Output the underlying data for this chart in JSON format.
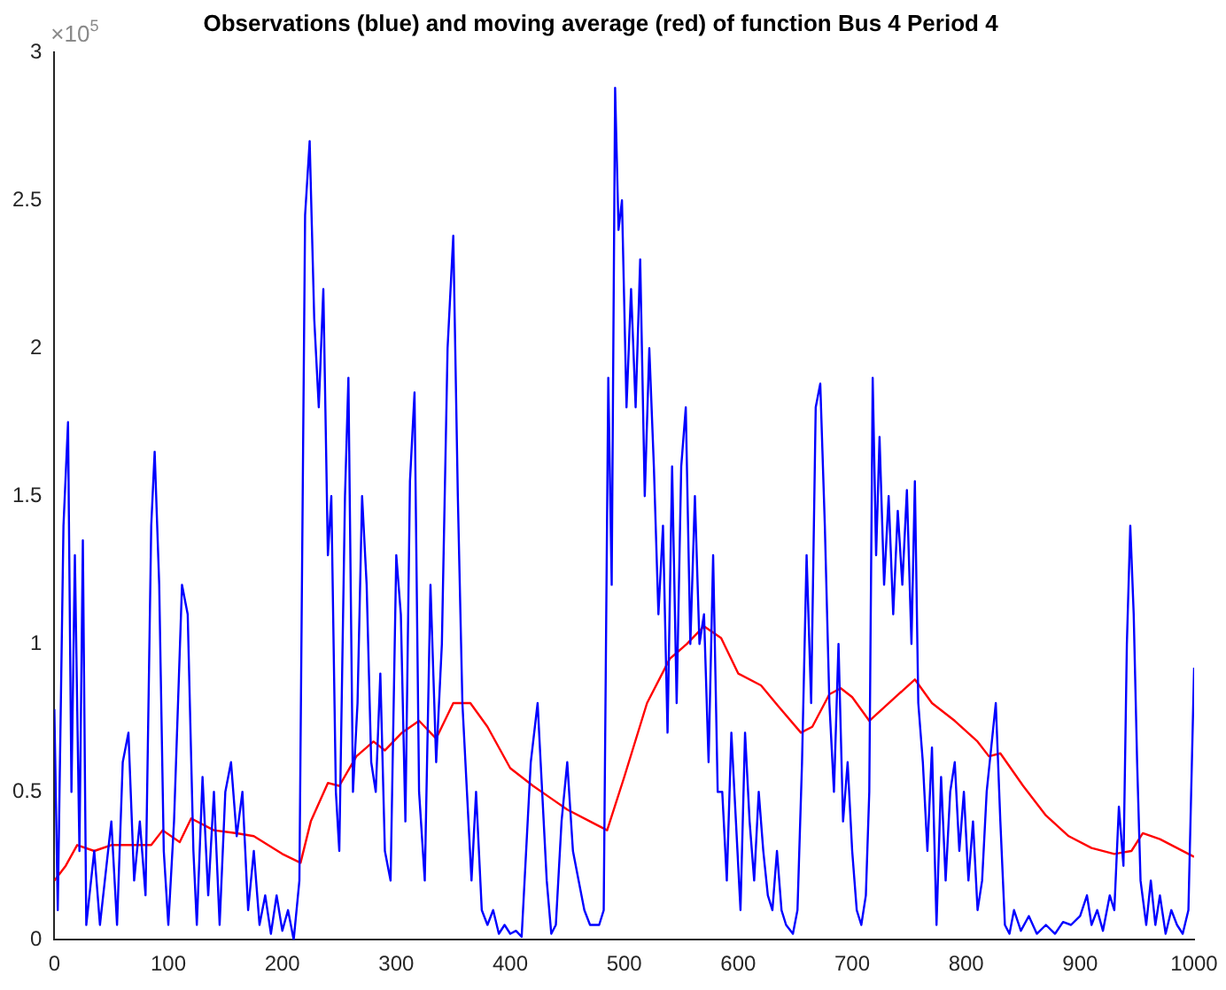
{
  "chart_data": {
    "type": "line",
    "title": "Observations (blue) and moving average (red) of function Bus 4 Period 4",
    "annotations": [
      "×10$^{5}$"
    ],
    "xlim": [
      0,
      1000
    ],
    "xticks": [
      0,
      100,
      200,
      300,
      400,
      500,
      600,
      700,
      800,
      900,
      1000
    ],
    "ylim": [
      0,
      3
    ],
    "yticks": [
      0,
      0.5,
      1,
      1.5,
      2,
      2.5,
      3
    ],
    "grid": false,
    "legend": false,
    "marker": "none",
    "line_style": "solid",
    "series": [
      {
        "color": "#0000ff",
        "x": [
          0,
          3,
          8,
          12,
          15,
          18,
          22,
          25,
          28,
          35,
          40,
          50,
          55,
          60,
          65,
          70,
          75,
          80,
          85,
          88,
          92,
          96,
          100,
          105,
          112,
          117,
          122,
          125,
          130,
          135,
          140,
          145,
          150,
          155,
          160,
          165,
          170,
          175,
          180,
          185,
          190,
          195,
          200,
          205,
          210,
          215,
          220,
          224,
          228,
          232,
          236,
          240,
          243,
          247,
          250,
          255,
          258,
          262,
          266,
          270,
          274,
          278,
          282,
          286,
          290,
          295,
          300,
          304,
          308,
          312,
          316,
          320,
          325,
          330,
          335,
          340,
          345,
          350,
          354,
          358,
          362,
          366,
          370,
          375,
          380,
          385,
          390,
          395,
          400,
          405,
          410,
          418,
          424,
          428,
          432,
          436,
          440,
          445,
          450,
          455,
          460,
          465,
          470,
          478,
          482,
          486,
          489,
          492,
          495,
          498,
          502,
          506,
          510,
          514,
          518,
          522,
          526,
          530,
          534,
          538,
          542,
          546,
          550,
          554,
          558,
          562,
          566,
          570,
          574,
          578,
          582,
          586,
          590,
          594,
          598,
          602,
          606,
          610,
          614,
          618,
          622,
          626,
          630,
          634,
          638,
          642,
          648,
          652,
          656,
          660,
          664,
          668,
          672,
          676,
          680,
          684,
          688,
          692,
          696,
          700,
          704,
          708,
          712,
          715,
          718,
          721,
          724,
          728,
          732,
          736,
          740,
          744,
          748,
          752,
          755,
          758,
          762,
          766,
          770,
          774,
          778,
          782,
          786,
          790,
          794,
          798,
          802,
          806,
          810,
          814,
          818,
          822,
          826,
          830,
          834,
          838,
          842,
          848,
          855,
          862,
          870,
          878,
          885,
          892,
          900,
          906,
          910,
          915,
          920,
          926,
          930,
          934,
          938,
          941,
          944,
          947,
          950,
          953,
          958,
          962,
          966,
          970,
          975,
          980,
          985,
          990,
          995,
          1000
        ],
        "values": [
          0.78,
          0.1,
          1.4,
          1.75,
          0.5,
          1.3,
          0.3,
          1.35,
          0.05,
          0.3,
          0.05,
          0.4,
          0.05,
          0.6,
          0.7,
          0.2,
          0.4,
          0.15,
          1.4,
          1.65,
          1.2,
          0.3,
          0.05,
          0.4,
          1.2,
          1.1,
          0.3,
          0.05,
          0.55,
          0.15,
          0.5,
          0.05,
          0.5,
          0.6,
          0.35,
          0.5,
          0.1,
          0.3,
          0.05,
          0.15,
          0.02,
          0.15,
          0.03,
          0.1,
          0,
          0.2,
          2.45,
          2.7,
          2.1,
          1.8,
          2.2,
          1.3,
          1.5,
          0.5,
          0.3,
          1.5,
          1.9,
          0.5,
          0.8,
          1.5,
          1.2,
          0.6,
          0.5,
          0.9,
          0.3,
          0.2,
          1.3,
          1.1,
          0.4,
          1.55,
          1.85,
          0.5,
          0.2,
          1.2,
          0.6,
          1,
          2,
          2.38,
          1.5,
          0.8,
          0.5,
          0.2,
          0.5,
          0.1,
          0.05,
          0.1,
          0.02,
          0.05,
          0.02,
          0.03,
          0.01,
          0.6,
          0.8,
          0.5,
          0.2,
          0.02,
          0.05,
          0.4,
          0.6,
          0.3,
          0.2,
          0.1,
          0.05,
          0.05,
          0.1,
          1.9,
          1.2,
          2.88,
          2.4,
          2.5,
          1.8,
          2.2,
          1.8,
          2.3,
          1.5,
          2,
          1.6,
          1.1,
          1.4,
          0.7,
          1.6,
          0.8,
          1.6,
          1.8,
          1,
          1.5,
          1,
          1.1,
          0.6,
          1.3,
          0.5,
          0.5,
          0.2,
          0.7,
          0.4,
          0.1,
          0.7,
          0.4,
          0.2,
          0.5,
          0.3,
          0.15,
          0.1,
          0.3,
          0.1,
          0.05,
          0.02,
          0.1,
          0.6,
          1.3,
          0.8,
          1.8,
          1.88,
          1.4,
          0.8,
          0.5,
          1,
          0.4,
          0.6,
          0.3,
          0.1,
          0.05,
          0.15,
          0.5,
          1.9,
          1.3,
          1.7,
          1.2,
          1.5,
          1.1,
          1.45,
          1.2,
          1.52,
          1,
          1.55,
          0.8,
          0.6,
          0.3,
          0.65,
          0.05,
          0.55,
          0.2,
          0.5,
          0.6,
          0.3,
          0.5,
          0.2,
          0.4,
          0.1,
          0.2,
          0.5,
          0.65,
          0.8,
          0.4,
          0.05,
          0.02,
          0.1,
          0.03,
          0.08,
          0.02,
          0.05,
          0.02,
          0.06,
          0.05,
          0.08,
          0.15,
          0.05,
          0.1,
          0.03,
          0.15,
          0.1,
          0.45,
          0.25,
          1,
          1.4,
          1.1,
          0.6,
          0.2,
          0.05,
          0.2,
          0.05,
          0.15,
          0.02,
          0.1,
          0.05,
          0.02,
          0.1,
          0.92
        ]
      },
      {
        "color": "#ff0000",
        "x": [
          0,
          10,
          20,
          35,
          50,
          70,
          85,
          95,
          110,
          120,
          140,
          160,
          175,
          200,
          216,
          225,
          240,
          250,
          265,
          280,
          290,
          305,
          320,
          335,
          350,
          365,
          380,
          400,
          420,
          435,
          450,
          470,
          485,
          500,
          520,
          540,
          555,
          570,
          585,
          600,
          620,
          635,
          655,
          665,
          680,
          690,
          700,
          715,
          735,
          755,
          770,
          790,
          810,
          820,
          830,
          850,
          870,
          890,
          910,
          930,
          945,
          955,
          970,
          985,
          1000
        ],
        "values": [
          0.2,
          0.25,
          0.32,
          0.3,
          0.32,
          0.32,
          0.32,
          0.37,
          0.33,
          0.41,
          0.37,
          0.36,
          0.35,
          0.29,
          0.26,
          0.4,
          0.53,
          0.52,
          0.62,
          0.67,
          0.64,
          0.7,
          0.74,
          0.68,
          0.8,
          0.8,
          0.72,
          0.58,
          0.52,
          0.48,
          0.44,
          0.4,
          0.37,
          0.55,
          0.8,
          0.95,
          1,
          1.06,
          1.02,
          0.9,
          0.86,
          0.79,
          0.7,
          0.72,
          0.83,
          0.85,
          0.82,
          0.74,
          0.81,
          0.88,
          0.8,
          0.74,
          0.67,
          0.62,
          0.63,
          0.52,
          0.42,
          0.35,
          0.31,
          0.29,
          0.3,
          0.36,
          0.34,
          0.31,
          0.28
        ]
      }
    ]
  }
}
